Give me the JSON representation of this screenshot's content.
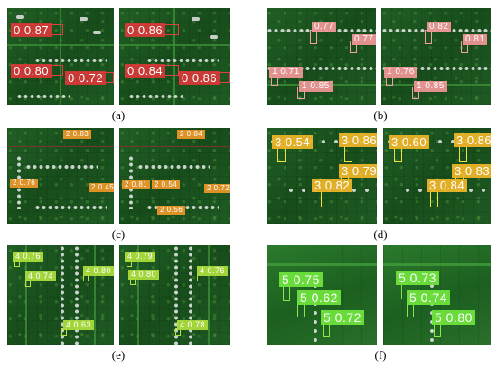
{
  "captions": {
    "a": "(a)",
    "b": "(b)",
    "c": "(c)",
    "d": "(d)",
    "e": "(e)",
    "f": "(f)"
  },
  "colors": {
    "a": "#d63838",
    "b": "#ec9696",
    "c": "#e89628",
    "d": "#ecd63c",
    "e": "#aadc3c",
    "f": "#6ee23c"
  },
  "detections": {
    "a_left": [
      "0 0.87",
      "0 0.80",
      "0 0.72"
    ],
    "a_right": [
      "0 0.86",
      "0 0.84",
      "0 0.86"
    ],
    "b_left": [
      "0.77",
      "0.77",
      "1 0.71",
      "1 0.85"
    ],
    "b_right": [
      "0.82",
      "0.81",
      "1 0.76",
      "1 0.85"
    ],
    "c_left": [
      "2 0.83",
      "2 0.76",
      "2 0.45"
    ],
    "c_right": [
      "2 0.84",
      "2 0.81",
      "2 0.54",
      "2 0.72",
      "2 0.56"
    ],
    "d_left": [
      "3 0.54",
      "3 0.86",
      "3 0.79",
      "3 0.82"
    ],
    "d_right": [
      "3 0.60",
      "3 0.86",
      "3 0.83",
      "3 0.84"
    ],
    "e_left": [
      "4 0.76",
      "4 0.74",
      "4 0.80",
      "4 0.63"
    ],
    "e_right": [
      "4 0.79",
      "4 0.80",
      "4 0.76",
      "4 0.78"
    ],
    "f_left": [
      "5 0.75",
      "5 0.62",
      "5 0.72"
    ],
    "f_right": [
      "5 0.73",
      "5 0.74",
      "5 0.80"
    ]
  }
}
